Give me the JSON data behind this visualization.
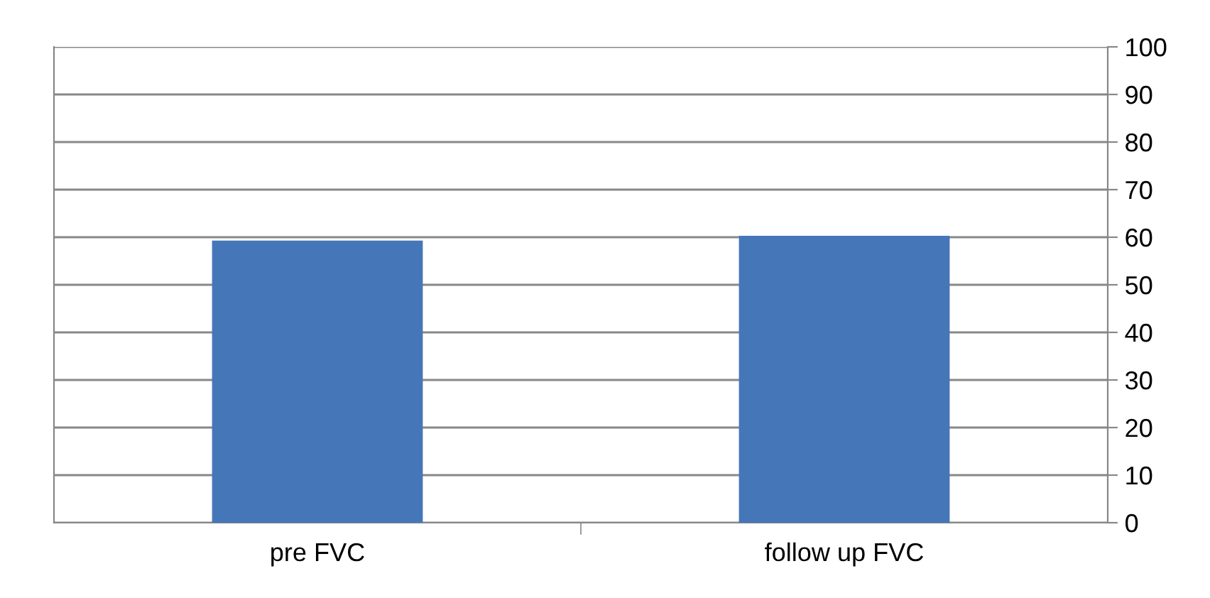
{
  "chart_data": {
    "type": "bar",
    "categories": [
      "pre FVC",
      "follow up FVC"
    ],
    "values": [
      59.3,
      60.3
    ],
    "color": "#4577b8",
    "ylim": [
      0,
      100
    ],
    "yticks": [
      0,
      10,
      20,
      30,
      40,
      50,
      60,
      70,
      80,
      90,
      100
    ],
    "grid": "y"
  }
}
